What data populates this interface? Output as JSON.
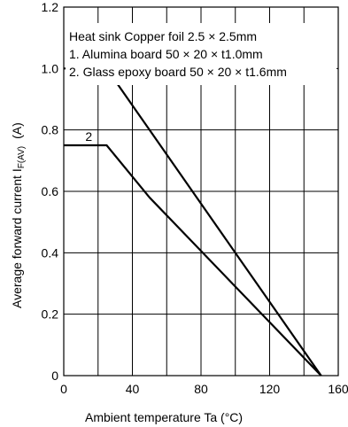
{
  "chart_data": {
    "type": "line",
    "xlabel": "Ambient temperature    Ta    (°C)",
    "ylabel_main": "Average forward current    I",
    "ylabel_sub": "F(AV)",
    "ylabel_unit": "(A)",
    "xlim": [
      0,
      160
    ],
    "ylim": [
      0,
      1.2
    ],
    "x_ticks": [
      0,
      40,
      80,
      120,
      160
    ],
    "y_ticks": [
      0,
      0.2,
      0.4,
      0.6,
      0.8,
      1.0,
      1.2
    ],
    "x_tick_labels": [
      "0",
      "40",
      "80",
      "120",
      "160"
    ],
    "y_tick_labels": [
      "0",
      "0.2",
      "0.4",
      "0.6",
      "0.8",
      "1.0",
      "1.2"
    ],
    "grid": true,
    "annotations": [
      "Heat sink   Copper foil    2.5 × 2.5mm",
      "1. Alumina board    50 × 20 × t1.0mm",
      "2. Glass epoxy board    50 × 20 × t1.6mm"
    ],
    "series": [
      {
        "name": "1",
        "points": [
          [
            0,
            1.0
          ],
          [
            25,
            1.0
          ],
          [
            50,
            0.8
          ],
          [
            75,
            0.6
          ],
          [
            100,
            0.4
          ],
          [
            125,
            0.2
          ],
          [
            150,
            0.0
          ]
        ]
      },
      {
        "name": "2",
        "points": [
          [
            0,
            0.75
          ],
          [
            25,
            0.75
          ],
          [
            50,
            0.58
          ],
          [
            100,
            0.29
          ],
          [
            150,
            0.0
          ]
        ]
      }
    ]
  }
}
